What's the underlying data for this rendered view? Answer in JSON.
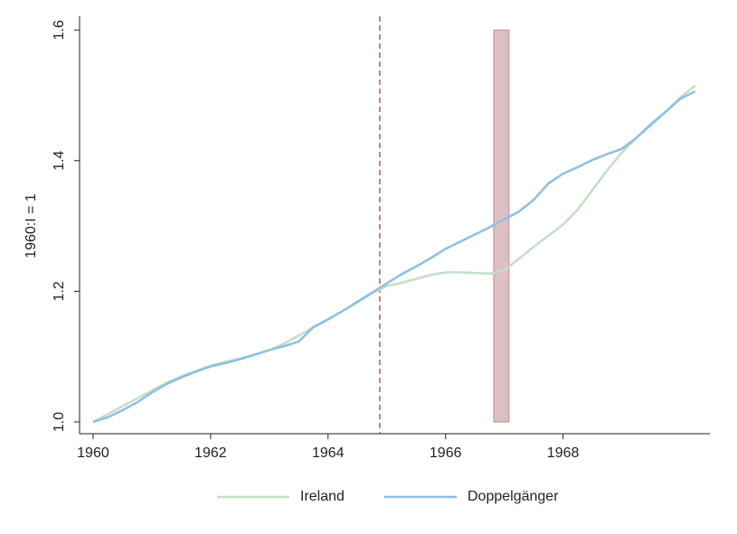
{
  "chart_data": {
    "type": "line",
    "y_label": "1960:I = 1",
    "x": [
      1960,
      1960.25,
      1960.5,
      1960.75,
      1961,
      1961.25,
      1961.5,
      1961.75,
      1962,
      1962.25,
      1962.5,
      1962.75,
      1963,
      1963.25,
      1963.5,
      1963.75,
      1964,
      1964.25,
      1964.5,
      1964.75,
      1965,
      1965.25,
      1965.5,
      1965.75,
      1966,
      1966.25,
      1966.5,
      1966.75,
      1967,
      1967.25,
      1967.5,
      1967.75,
      1968,
      1968.25,
      1968.5,
      1968.75,
      1969,
      1969.25,
      1969.5,
      1969.75,
      1970,
      1970.25
    ],
    "series": [
      {
        "name": "Ireland",
        "color": "#c4dfc4",
        "values": [
          1.0,
          1.012,
          1.024,
          1.036,
          1.048,
          1.06,
          1.07,
          1.078,
          1.086,
          1.092,
          1.097,
          1.103,
          1.11,
          1.12,
          1.132,
          1.145,
          1.157,
          1.17,
          1.183,
          1.197,
          1.208,
          1.213,
          1.219,
          1.225,
          1.229,
          1.229,
          1.228,
          1.227,
          1.232,
          1.25,
          1.268,
          1.285,
          1.302,
          1.325,
          1.355,
          1.385,
          1.412,
          1.435,
          1.457,
          1.475,
          1.497,
          1.515
        ]
      },
      {
        "name": "Doppelgänger",
        "color": "#8cc0e4",
        "values": [
          1.0,
          1.007,
          1.018,
          1.03,
          1.045,
          1.058,
          1.068,
          1.077,
          1.085,
          1.09,
          1.096,
          1.103,
          1.11,
          1.116,
          1.123,
          1.145,
          1.157,
          1.17,
          1.184,
          1.198,
          1.212,
          1.226,
          1.238,
          1.251,
          1.265,
          1.276,
          1.287,
          1.298,
          1.31,
          1.322,
          1.34,
          1.365,
          1.38,
          1.39,
          1.401,
          1.41,
          1.418,
          1.435,
          1.455,
          1.475,
          1.495,
          1.506
        ]
      }
    ],
    "reference_line": 1964.88,
    "shaded_region": {
      "x": [
        1966.82,
        1967.08
      ],
      "y": [
        1.0,
        1.6
      ]
    },
    "xlim": [
      1959.77,
      1970.5
    ],
    "xticks": [
      1960,
      1962,
      1964,
      1966,
      1968
    ],
    "ylim": [
      0.982,
      1.621
    ],
    "yticks": [
      {
        "value": 1.0,
        "label": "1.0"
      },
      1.2,
      1.4,
      1.6
    ]
  }
}
